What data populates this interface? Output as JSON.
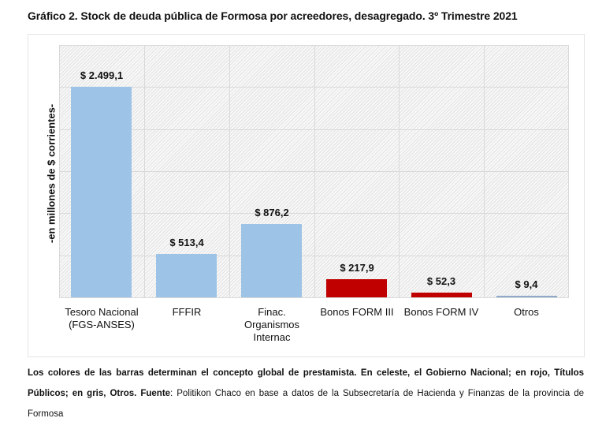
{
  "title": "Gráfico 2. Stock de deuda pública de Formosa por acreedores, desagregado. 3º Trimestre 2021",
  "colors": {
    "celeste": "#9dc3e6",
    "rojo": "#c00000",
    "gris": "#8fa9c8"
  },
  "chart_data": {
    "type": "bar",
    "title": "Gráfico 2. Stock de deuda pública de Formosa por acreedores, desagregado. 3º Trimestre 2021",
    "xlabel": "",
    "ylabel": "-en millones de $ corrientes-",
    "categories": [
      "Tesoro Nacional (FGS-ANSES)",
      "FFFIR",
      "Finac. Organismos Internac",
      "Bonos FORM III",
      "Bonos FORM IV",
      "Otros"
    ],
    "values": [
      2499.1,
      513.4,
      876.2,
      217.9,
      52.3,
      9.4
    ],
    "value_labels": [
      "$ 2.499,1",
      "$ 513,4",
      "$ 876,2",
      "$ 217,9",
      "$ 52,3",
      "$ 9,4"
    ],
    "bar_colors": [
      "#9dc3e6",
      "#9dc3e6",
      "#9dc3e6",
      "#c00000",
      "#c00000",
      "#8fa9c8"
    ],
    "ylim": [
      0,
      3000
    ],
    "grid": true,
    "y_ticks_visible": false,
    "legend": null
  },
  "categories_display": [
    [
      "Tesoro Nacional",
      "(FGS-ANSES)"
    ],
    [
      "FFFIR"
    ],
    [
      "Finac.",
      "Organismos",
      "Internac"
    ],
    [
      "Bonos FORM III"
    ],
    [
      "Bonos FORM IV"
    ],
    [
      "Otros"
    ]
  ],
  "caption": {
    "bold1": "Los colores de las barras determinan el concepto global de prestamista. En celeste, el Gobierno Nacional; en rojo, Títulos Públicos; en gris, Otros. Fuente",
    "normal": ": Politikon Chaco en base a datos de la Subsecretaría de Hacienda y Finanzas de la provincia de Formosa"
  }
}
